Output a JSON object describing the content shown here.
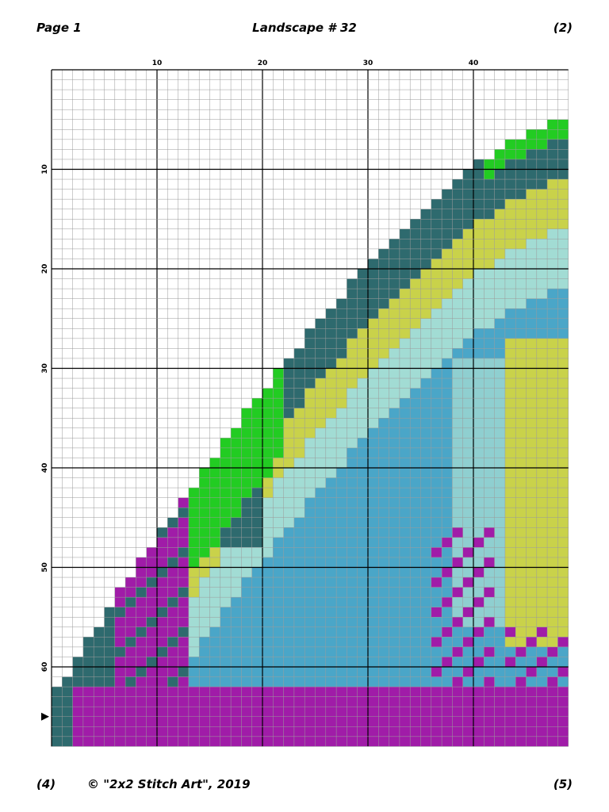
{
  "header": {
    "page": "Page 1",
    "title": "Landscape # 32",
    "right": "(2)"
  },
  "axes": {
    "top": [
      "10",
      "20",
      "30",
      "40"
    ],
    "left": [
      "10",
      "20",
      "30",
      "40",
      "50",
      "60"
    ]
  },
  "footer": {
    "left": "(4)",
    "center": "© \"2x2 Stitch Art\", 2019",
    "right": "(5)"
  }
}
